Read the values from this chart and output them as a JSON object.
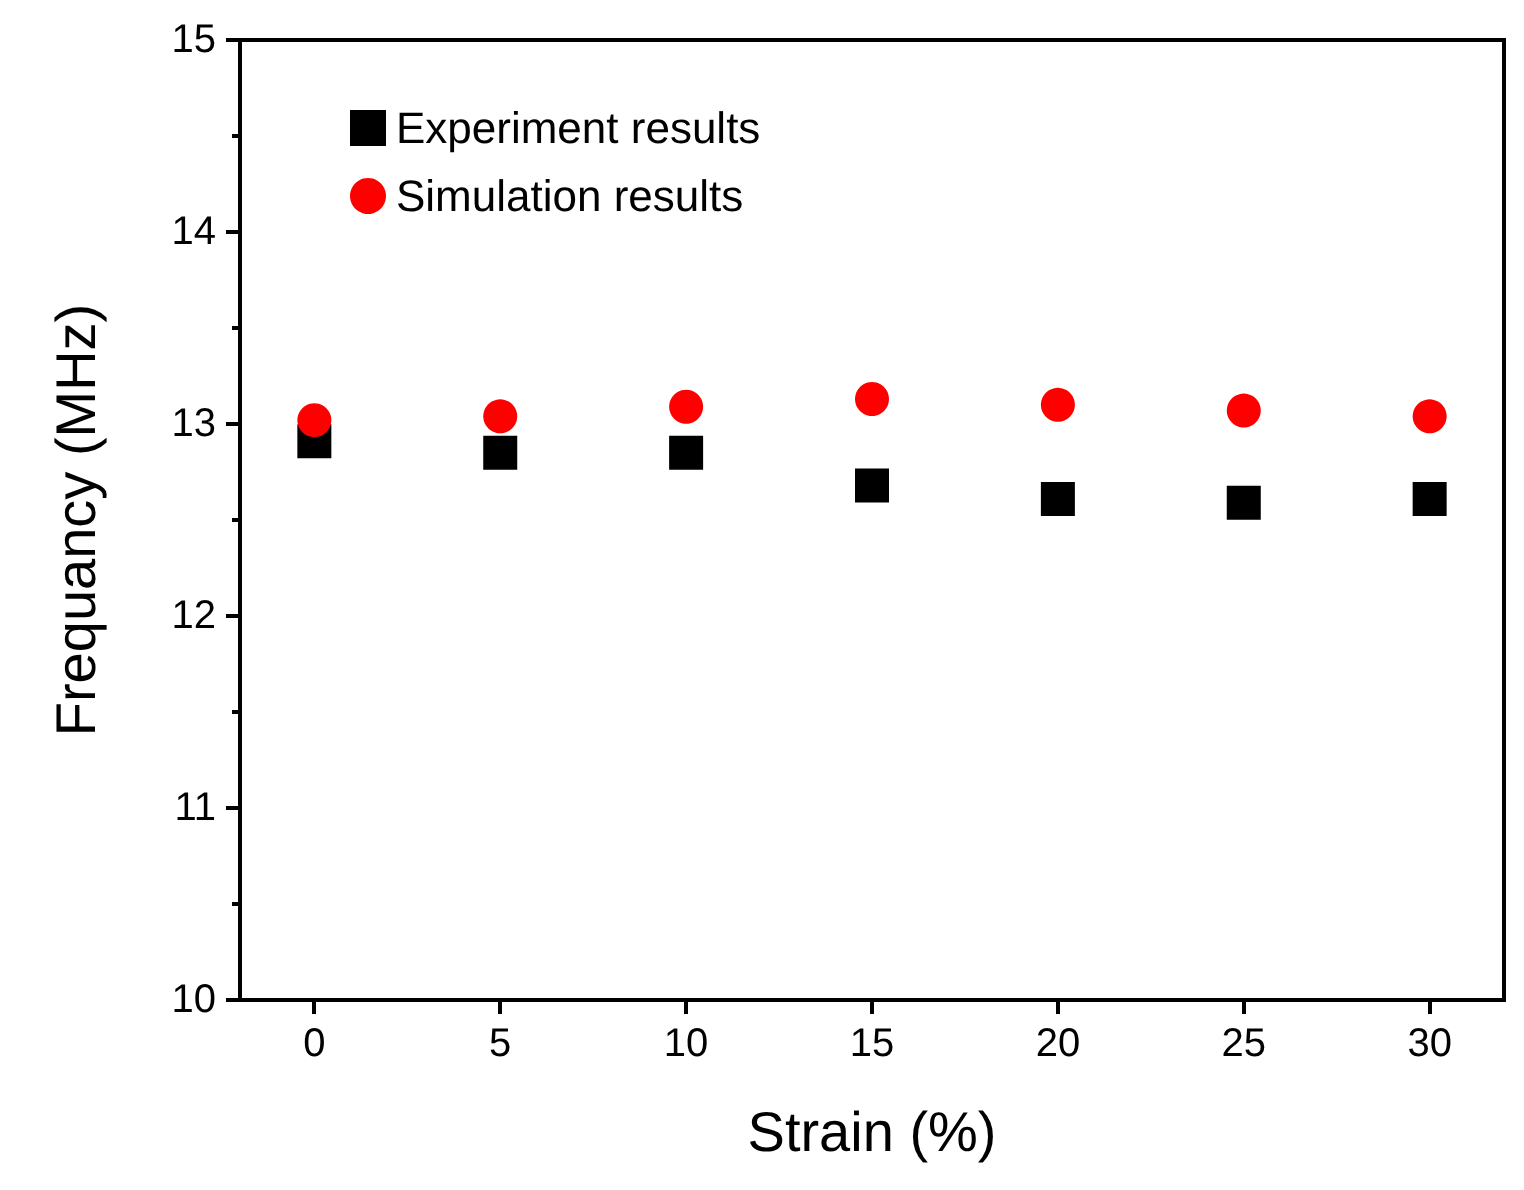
{
  "chart_data": {
    "type": "scatter",
    "xlabel": "Strain (%)",
    "ylabel": "Frequancy (MHz)",
    "x": [
      0,
      5,
      10,
      15,
      20,
      25,
      30
    ],
    "series": [
      {
        "name": "Experiment results",
        "color": "#000000",
        "marker": "square",
        "values": [
          12.91,
          12.85,
          12.85,
          12.68,
          12.61,
          12.59,
          12.61
        ]
      },
      {
        "name": "Simulation results",
        "color": "#ff0000",
        "marker": "circle",
        "values": [
          13.02,
          13.04,
          13.09,
          13.13,
          13.1,
          13.07,
          13.04
        ]
      }
    ],
    "xlim": [
      -2,
      32
    ],
    "xticks": [
      0,
      5,
      10,
      15,
      20,
      25,
      30
    ],
    "ylim": [
      10,
      15
    ],
    "yticks": [
      10,
      11,
      12,
      13,
      14,
      15
    ],
    "grid": false,
    "legend": "top left"
  }
}
